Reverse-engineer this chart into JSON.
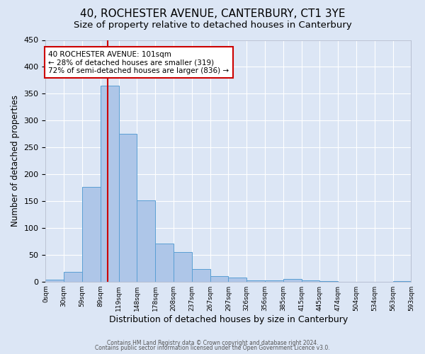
{
  "title": "40, ROCHESTER AVENUE, CANTERBURY, CT1 3YE",
  "subtitle": "Size of property relative to detached houses in Canterbury",
  "xlabel": "Distribution of detached houses by size in Canterbury",
  "ylabel": "Number of detached properties",
  "x_labels": [
    "0sqm",
    "30sqm",
    "59sqm",
    "89sqm",
    "119sqm",
    "148sqm",
    "178sqm",
    "208sqm",
    "237sqm",
    "267sqm",
    "297sqm",
    "326sqm",
    "356sqm",
    "385sqm",
    "415sqm",
    "445sqm",
    "474sqm",
    "504sqm",
    "534sqm",
    "563sqm",
    "593sqm"
  ],
  "bar_values": [
    3,
    18,
    176,
    365,
    275,
    151,
    71,
    55,
    24,
    10,
    7,
    2,
    2,
    5,
    2,
    1,
    0,
    0,
    0,
    1
  ],
  "bar_color": "#aec6e8",
  "bar_edge_color": "#5a9fd4",
  "vline_bin": 3.4,
  "vline_color": "#cc0000",
  "annotation_box_text": "40 ROCHESTER AVENUE: 101sqm\n← 28% of detached houses are smaller (319)\n72% of semi-detached houses are larger (836) →",
  "annotation_box_color": "#cc0000",
  "annotation_box_fill": "#ffffff",
  "ylim": [
    0,
    450
  ],
  "yticks": [
    0,
    50,
    100,
    150,
    200,
    250,
    300,
    350,
    400,
    450
  ],
  "background_color": "#dce6f5",
  "plot_bg_color": "#dce6f5",
  "footer_line1": "Contains HM Land Registry data © Crown copyright and database right 2024.",
  "footer_line2": "Contains public sector information licensed under the Open Government Licence v3.0.",
  "title_fontsize": 11,
  "subtitle_fontsize": 9.5,
  "xlabel_fontsize": 9,
  "ylabel_fontsize": 8.5
}
